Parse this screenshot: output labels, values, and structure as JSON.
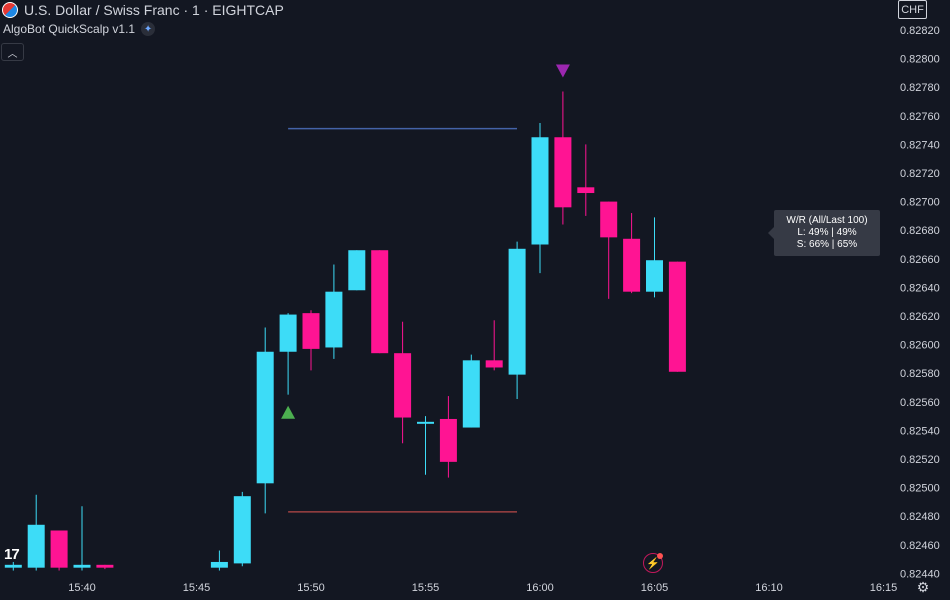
{
  "header": {
    "symbol_title": "U.S. Dollar / Swiss Franc · 1 · EIGHTCAP",
    "indicator_name": "AlgoBot QuickScalp v1.1",
    "currency": "CHF"
  },
  "stats_box": {
    "title": "W/R (All/Last 100)",
    "long_row": "L:  49% | 49%",
    "short_row": "S:  66% | 65%"
  },
  "logo_text": "17",
  "icons": {
    "flag": "us-ch-flag-icon",
    "indicator": "sparkle-icon",
    "collapse": "chevron-up-icon",
    "bolt": "lightning-icon",
    "settings": "gear-icon"
  },
  "colors": {
    "background": "#131722",
    "bull": "#3ddcf7",
    "bear": "#ff1493",
    "text": "#d1d4dc",
    "resistance_line": "#4463a8",
    "support_line": "#b84848",
    "buy_signal": "#4caf50",
    "sell_signal": "#9c27b0"
  },
  "chart_data": {
    "type": "candlestick",
    "title": "",
    "xlabel": "",
    "ylabel": "",
    "y_ticks": [
      "0.82820",
      "0.82800",
      "0.82780",
      "0.82760",
      "0.82740",
      "0.82720",
      "0.82700",
      "0.82680",
      "0.82660",
      "0.82640",
      "0.82620",
      "0.82600",
      "0.82580",
      "0.82560",
      "0.82540",
      "0.82520",
      "0.82500",
      "0.82480",
      "0.82460",
      "0.82440"
    ],
    "x_ticks": [
      {
        "label": "15:40",
        "minute": 40
      },
      {
        "label": "15:45",
        "minute": 45
      },
      {
        "label": "15:50",
        "minute": 50
      },
      {
        "label": "15:55",
        "minute": 55
      },
      {
        "label": "16:00",
        "minute": 60
      },
      {
        "label": "16:05",
        "minute": 65
      },
      {
        "label": "16:10",
        "minute": 70
      },
      {
        "label": "16:15",
        "minute": 75
      }
    ],
    "ylim": [
      0.8244,
      0.8282
    ],
    "candles": [
      {
        "minute": 37,
        "open": 0.82444,
        "high": 0.82448,
        "low": 0.82442,
        "close": 0.82446
      },
      {
        "minute": 38,
        "open": 0.82444,
        "high": 0.82495,
        "low": 0.82442,
        "close": 0.82474
      },
      {
        "minute": 39,
        "open": 0.8247,
        "high": 0.8247,
        "low": 0.82442,
        "close": 0.82444
      },
      {
        "minute": 40,
        "open": 0.82444,
        "high": 0.82487,
        "low": 0.82442,
        "close": 0.82446
      },
      {
        "minute": 41,
        "open": 0.82446,
        "high": 0.82446,
        "low": 0.82443,
        "close": 0.82444
      },
      {
        "minute": 46,
        "open": 0.82444,
        "high": 0.82456,
        "low": 0.82442,
        "close": 0.82448
      },
      {
        "minute": 47,
        "open": 0.82447,
        "high": 0.82497,
        "low": 0.82445,
        "close": 0.82494
      },
      {
        "minute": 48,
        "open": 0.82503,
        "high": 0.82612,
        "low": 0.82482,
        "close": 0.82595
      },
      {
        "minute": 49,
        "open": 0.82595,
        "high": 0.82622,
        "low": 0.82565,
        "close": 0.82621
      },
      {
        "minute": 50,
        "open": 0.82622,
        "high": 0.82624,
        "low": 0.82582,
        "close": 0.82597
      },
      {
        "minute": 51,
        "open": 0.82598,
        "high": 0.82656,
        "low": 0.8259,
        "close": 0.82637
      },
      {
        "minute": 52,
        "open": 0.82638,
        "high": 0.82666,
        "low": 0.82638,
        "close": 0.82666
      },
      {
        "minute": 53,
        "open": 0.82666,
        "high": 0.82666,
        "low": 0.82594,
        "close": 0.82594
      },
      {
        "minute": 54,
        "open": 0.82594,
        "high": 0.82616,
        "low": 0.82531,
        "close": 0.82549
      },
      {
        "minute": 55,
        "open": 0.82546,
        "high": 0.8255,
        "low": 0.82509,
        "close": 0.82546
      },
      {
        "minute": 56,
        "open": 0.82548,
        "high": 0.82564,
        "low": 0.82507,
        "close": 0.82518
      },
      {
        "minute": 57,
        "open": 0.82542,
        "high": 0.82593,
        "low": 0.82542,
        "close": 0.82589
      },
      {
        "minute": 58,
        "open": 0.82589,
        "high": 0.82617,
        "low": 0.82582,
        "close": 0.82584
      },
      {
        "minute": 59,
        "open": 0.82579,
        "high": 0.82672,
        "low": 0.82562,
        "close": 0.82667
      },
      {
        "minute": 60,
        "open": 0.8267,
        "high": 0.82755,
        "low": 0.8265,
        "close": 0.82745
      },
      {
        "minute": 61,
        "open": 0.82745,
        "high": 0.82777,
        "low": 0.82684,
        "close": 0.82696
      },
      {
        "minute": 62,
        "open": 0.8271,
        "high": 0.8274,
        "low": 0.8269,
        "close": 0.82706
      },
      {
        "minute": 63,
        "open": 0.827,
        "high": 0.827,
        "low": 0.82632,
        "close": 0.82675
      },
      {
        "minute": 64,
        "open": 0.82674,
        "high": 0.82692,
        "low": 0.82636,
        "close": 0.82637
      },
      {
        "minute": 65,
        "open": 0.82637,
        "high": 0.82689,
        "low": 0.82633,
        "close": 0.82659
      },
      {
        "minute": 66,
        "open": 0.82658,
        "high": 0.82658,
        "low": 0.82581,
        "close": 0.82581
      }
    ],
    "resistance_level": {
      "price": 0.82751,
      "from_minute": 49,
      "to_minute": 60
    },
    "support_level": {
      "price": 0.82483,
      "from_minute": 49,
      "to_minute": 60
    },
    "signals": [
      {
        "type": "buy",
        "minute": 49,
        "price": 0.82553
      },
      {
        "type": "sell",
        "minute": 61,
        "price": 0.82791
      }
    ],
    "grid": false
  }
}
